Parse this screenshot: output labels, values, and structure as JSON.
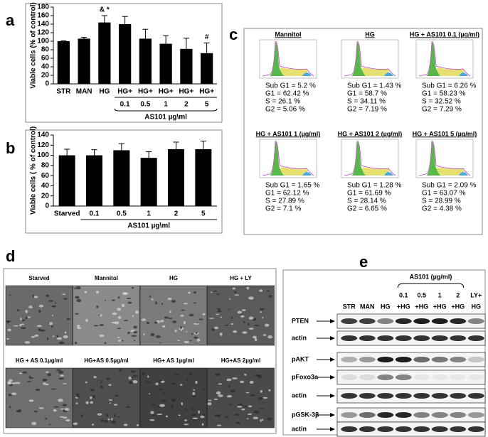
{
  "panels": [
    "a",
    "b",
    "c",
    "d",
    "e"
  ],
  "chart_data": [
    {
      "type": "bar",
      "y_label": "Viable cells (% of control)",
      "categories": [
        "STR",
        "MAN",
        "HG",
        "HG+",
        "HG+",
        "HG+",
        "HG+",
        "HG+"
      ],
      "sublabels": [
        null,
        null,
        null,
        "0.1",
        "0.5",
        "1",
        "2",
        "5"
      ],
      "group_label": "AS101 µg\\ml",
      "values": [
        100,
        106,
        144,
        140,
        106,
        94,
        82,
        72
      ],
      "errors": [
        1,
        3,
        16,
        18,
        22,
        19,
        25,
        24
      ],
      "markers": [
        null,
        null,
        "& *",
        null,
        null,
        null,
        null,
        "#"
      ],
      "color": "#000000",
      "ylim": [
        0,
        180
      ],
      "yticks": [
        0,
        20,
        40,
        60,
        80,
        100,
        120,
        140,
        160,
        180
      ]
    },
    {
      "type": "bar",
      "y_label": "Viable cells ( % of control)",
      "categories": [
        "Starved",
        "0.1",
        "0.5",
        "1",
        "2",
        "5"
      ],
      "group_label": "AS101 µg\\ml",
      "values": [
        100,
        100,
        110,
        95,
        112,
        112
      ],
      "errors": [
        12,
        11,
        13,
        12,
        14,
        16
      ],
      "color": "#000000",
      "ylim": [
        0,
        140
      ],
      "yticks": [
        0,
        20,
        40,
        60,
        80,
        100,
        120,
        140
      ]
    }
  ],
  "flow": [
    {
      "title": "Mannitol",
      "stats": [
        "Sub G1 = 5.2 %",
        "G1 = 62.42 %",
        "S = 26.1 %",
        "G2 = 5.06 %"
      ]
    },
    {
      "title": "HG",
      "stats": [
        "Sub G1 = 1.43 %",
        "G1 = 58.7 %",
        "S = 34.11 %",
        "G2 = 7.19 %"
      ]
    },
    {
      "title": "HG + AS101 0.1 (µg/ml)",
      "stats": [
        "Sub G1 = 6.26 %",
        "G1 = 58.23 %",
        "S = 32.52 %",
        "G2 = 7.29 %"
      ]
    },
    {
      "title": "HG + AS101 1 (µg/ml)",
      "stats": [
        "Sub G1 = 1.65 %",
        "G1 = 62.12 %",
        "S = 27.89 %",
        "G2 = 7.1 %"
      ]
    },
    {
      "title": "HG + AS101 2 (µg/ml)",
      "stats": [
        "Sub G1 = 1.28 %",
        "G1 = 61.69 %",
        "S = 28.14 %",
        "G2 = 6.65 %"
      ]
    },
    {
      "title": "HG + AS101 5 (µg/ml)",
      "stats": [
        "Sub G1 = 2.09 %",
        "G1 = 63.07 %",
        "S = 28.99 %",
        "G2 = 4.38 %"
      ]
    }
  ],
  "micrographs": [
    "Starved",
    "Mannitol",
    "HG",
    "HG + LY",
    "HG + AS 0.1µg/ml",
    "HG+AS 0.5µg/ml",
    "HG+ AS 1µg/ml",
    "HG+AS 2µg/ml"
  ],
  "blot": {
    "header": "AS101 (µg/ml)",
    "lanes": [
      [
        "STR"
      ],
      [
        "MAN"
      ],
      [
        "HG"
      ],
      [
        "0.1",
        "+HG"
      ],
      [
        "0.5",
        "+HG"
      ],
      [
        "1",
        "+HG"
      ],
      [
        "2",
        "+HG"
      ],
      [
        "LY+",
        "HG"
      ]
    ],
    "rows": [
      "PTEN",
      "actin",
      "pAKT",
      "pFoxo3a",
      "actin",
      "pGSK-3β",
      "actin"
    ]
  }
}
